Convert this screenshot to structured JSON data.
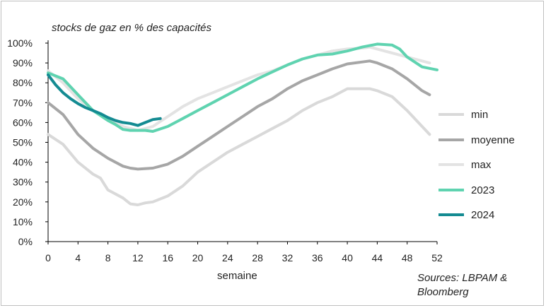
{
  "chart_data": {
    "type": "line",
    "title": "stocks de gaz en % des capacités",
    "xlabel": "semaine",
    "ylabel": "",
    "source": [
      "Sources: LBPAM &",
      "Bloomberg"
    ],
    "xlim": [
      0,
      52
    ],
    "ylim": [
      0,
      100
    ],
    "x_ticks": [
      0,
      4,
      8,
      12,
      16,
      20,
      24,
      28,
      32,
      36,
      40,
      44,
      48,
      52
    ],
    "y_ticks": [
      0,
      10,
      20,
      30,
      40,
      50,
      60,
      70,
      80,
      90,
      100
    ],
    "y_tick_labels": [
      "0%",
      "10%",
      "20%",
      "30%",
      "40%",
      "50%",
      "60%",
      "70%",
      "80%",
      "90%",
      "100%"
    ],
    "legend_position": "right",
    "series": [
      {
        "name": "min",
        "color": "#d9d9d9",
        "points": [
          [
            0,
            54
          ],
          [
            2,
            49
          ],
          [
            4,
            40
          ],
          [
            6,
            34
          ],
          [
            7,
            32
          ],
          [
            8,
            26
          ],
          [
            10,
            22
          ],
          [
            11,
            19
          ],
          [
            12,
            18.5
          ],
          [
            13,
            19.5
          ],
          [
            14,
            20
          ],
          [
            16,
            23
          ],
          [
            18,
            28
          ],
          [
            20,
            35
          ],
          [
            22,
            40
          ],
          [
            24,
            45
          ],
          [
            26,
            49
          ],
          [
            28,
            53
          ],
          [
            30,
            57
          ],
          [
            32,
            61
          ],
          [
            34,
            66
          ],
          [
            36,
            70
          ],
          [
            38,
            73
          ],
          [
            40,
            77
          ],
          [
            42,
            77
          ],
          [
            43,
            77
          ],
          [
            44,
            76
          ],
          [
            46,
            73
          ],
          [
            48,
            66
          ],
          [
            50,
            58
          ],
          [
            51,
            54
          ]
        ]
      },
      {
        "name": "moyenne",
        "color": "#a6a6a6",
        "points": [
          [
            0,
            70
          ],
          [
            2,
            64
          ],
          [
            4,
            54
          ],
          [
            6,
            47
          ],
          [
            8,
            42
          ],
          [
            10,
            38
          ],
          [
            11,
            37
          ],
          [
            12,
            36.5
          ],
          [
            14,
            37
          ],
          [
            16,
            39
          ],
          [
            18,
            43
          ],
          [
            20,
            48
          ],
          [
            22,
            53
          ],
          [
            24,
            58
          ],
          [
            26,
            63
          ],
          [
            28,
            68
          ],
          [
            30,
            72
          ],
          [
            32,
            77
          ],
          [
            34,
            81
          ],
          [
            36,
            84
          ],
          [
            38,
            87
          ],
          [
            40,
            89.5
          ],
          [
            42,
            90.5
          ],
          [
            43,
            91
          ],
          [
            44,
            90
          ],
          [
            46,
            87
          ],
          [
            48,
            82
          ],
          [
            50,
            76
          ],
          [
            51,
            74
          ]
        ]
      },
      {
        "name": "max",
        "color": "#e3e3e3",
        "points": [
          [
            0,
            86
          ],
          [
            2,
            80
          ],
          [
            4,
            72
          ],
          [
            6,
            66
          ],
          [
            8,
            62
          ],
          [
            10,
            58
          ],
          [
            12,
            56
          ],
          [
            14,
            58
          ],
          [
            16,
            63
          ],
          [
            18,
            68
          ],
          [
            20,
            72
          ],
          [
            22,
            75
          ],
          [
            24,
            78
          ],
          [
            26,
            81
          ],
          [
            28,
            84
          ],
          [
            30,
            86
          ],
          [
            32,
            89
          ],
          [
            34,
            92
          ],
          [
            36,
            94
          ],
          [
            38,
            96
          ],
          [
            40,
            97
          ],
          [
            42,
            97.5
          ],
          [
            43,
            98
          ],
          [
            44,
            97
          ],
          [
            46,
            95
          ],
          [
            48,
            93
          ],
          [
            50,
            91
          ],
          [
            51,
            90
          ]
        ]
      },
      {
        "name": "2023",
        "color": "#5fd3b0",
        "points": [
          [
            0,
            85
          ],
          [
            2,
            82
          ],
          [
            4,
            74
          ],
          [
            6,
            66
          ],
          [
            8,
            61
          ],
          [
            9,
            59
          ],
          [
            10,
            56.5
          ],
          [
            11,
            56
          ],
          [
            12,
            56
          ],
          [
            13,
            56
          ],
          [
            14,
            55.5
          ],
          [
            16,
            58
          ],
          [
            18,
            62
          ],
          [
            20,
            66
          ],
          [
            22,
            70
          ],
          [
            24,
            74
          ],
          [
            26,
            78
          ],
          [
            28,
            82
          ],
          [
            30,
            85.5
          ],
          [
            32,
            89
          ],
          [
            34,
            92
          ],
          [
            36,
            94
          ],
          [
            38,
            94.5
          ],
          [
            40,
            96
          ],
          [
            42,
            98
          ],
          [
            44,
            99.5
          ],
          [
            46,
            99
          ],
          [
            47,
            97
          ],
          [
            48,
            93
          ],
          [
            50,
            88
          ],
          [
            52,
            86.5
          ]
        ]
      },
      {
        "name": "2024",
        "color": "#148b92",
        "points": [
          [
            0,
            84
          ],
          [
            1,
            79
          ],
          [
            2,
            75
          ],
          [
            3,
            72
          ],
          [
            4,
            69.5
          ],
          [
            5,
            67.5
          ],
          [
            6,
            66
          ],
          [
            7,
            64.5
          ],
          [
            8,
            62.5
          ],
          [
            9,
            61
          ],
          [
            10,
            60
          ],
          [
            11,
            59.5
          ],
          [
            12,
            58.5
          ],
          [
            13,
            60
          ],
          [
            14,
            61.5
          ],
          [
            15,
            62
          ]
        ]
      }
    ]
  }
}
